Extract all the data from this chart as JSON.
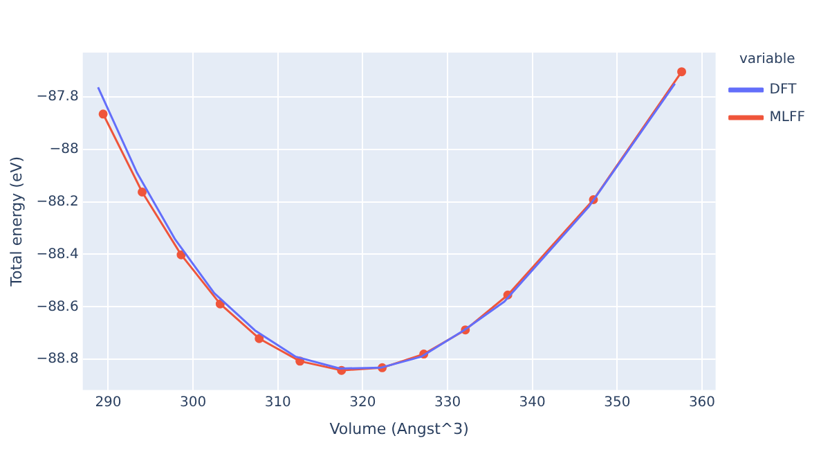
{
  "chart_data": {
    "type": "line",
    "xlabel": "Volume (Angst^3)",
    "ylabel": "Total energy (eV)",
    "legend_title": "variable",
    "legend": "top right",
    "grid": true,
    "xlim": [
      287,
      361.6
    ],
    "xticks": [
      290,
      300,
      310,
      320,
      330,
      340,
      350,
      360
    ],
    "ylim": [
      -88.917,
      -87.632
    ],
    "yticks": [
      {
        "value": -88.8,
        "label": "−88.8"
      },
      {
        "value": -88.6,
        "label": "−88.6"
      },
      {
        "value": -88.4,
        "label": "−88.4"
      },
      {
        "value": -88.2,
        "label": "−88.2"
      },
      {
        "value": -88,
        "label": "−88"
      },
      {
        "value": -87.8,
        "label": "−87.8"
      }
    ],
    "series": [
      {
        "name": "DFT",
        "color": "#636efa",
        "marker": "none",
        "x": [
          288.8,
          293.4,
          297.9,
          302.5,
          307.3,
          312.1,
          317.3,
          322.1,
          326.9,
          331.9,
          336.7,
          346.7,
          356.8
        ],
        "values": [
          -87.764,
          -88.09,
          -88.344,
          -88.548,
          -88.69,
          -88.79,
          -88.835,
          -88.832,
          -88.79,
          -88.69,
          -88.58,
          -88.217,
          -87.75
        ]
      },
      {
        "name": "MLFF",
        "color": "#ef553b",
        "marker": "circle",
        "x": [
          289.4,
          294.0,
          298.6,
          303.2,
          307.8,
          312.6,
          317.5,
          322.3,
          327.2,
          332.1,
          337.1,
          347.2,
          357.6
        ],
        "values": [
          -87.866,
          -88.163,
          -88.402,
          -88.589,
          -88.721,
          -88.807,
          -88.842,
          -88.832,
          -88.78,
          -88.688,
          -88.555,
          -88.192,
          -87.705
        ]
      }
    ]
  }
}
